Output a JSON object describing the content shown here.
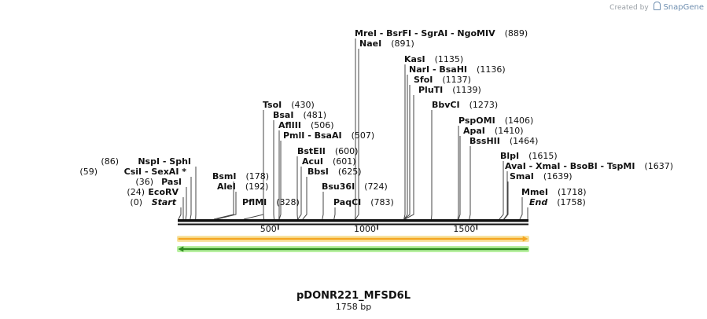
{
  "credit": {
    "prefix": "Created by",
    "brand_icon": "snapgene-logo-icon",
    "brand": "SnapGene"
  },
  "plasmid": {
    "name": "pDONR221_MFSD6L",
    "length_label": "1758 bp",
    "length": 1758
  },
  "axis": {
    "ticks": [
      500,
      1000,
      1500
    ],
    "tick_labels": [
      "500",
      "1000",
      "1500"
    ]
  },
  "features": [
    {
      "name": "feature-orange-arrow",
      "start": 0,
      "end": 1758,
      "direction": "forward",
      "color": "#f5a623",
      "halo": "#f7e3a1"
    },
    {
      "name": "feature-green-arrow",
      "start": 0,
      "end": 1758,
      "direction": "reverse",
      "color": "#2e8b1f",
      "halo": "#b7f0a0"
    }
  ],
  "sites": [
    {
      "text": "NspI  - SphI",
      "num": "(86)",
      "pos": 86,
      "numFirst": true
    },
    {
      "text": "CsiI  - SexAI *",
      "num": "(59)",
      "pos": 59,
      "numFirst": true
    },
    {
      "text": "PasI",
      "num": "(36)",
      "pos": 36,
      "numFirst": true
    },
    {
      "text": "EcoRV",
      "num": "(24)",
      "pos": 24,
      "numFirst": true
    },
    {
      "text": "Start",
      "num": "(0)",
      "pos": 0,
      "numFirst": true,
      "italic": true
    },
    {
      "text": "BsmI",
      "num": "(178)",
      "pos": 178
    },
    {
      "text": "AleI",
      "num": "(192)",
      "pos": 192
    },
    {
      "text": "PflMI",
      "num": "(328)",
      "pos": 328
    },
    {
      "text": "TsoI",
      "num": "(430)",
      "pos": 430
    },
    {
      "text": "BsaI",
      "num": "(481)",
      "pos": 481
    },
    {
      "text": "AflIII",
      "num": "(506)",
      "pos": 506
    },
    {
      "text": "PmlI  - BsaAI",
      "num": "(507)",
      "pos": 507
    },
    {
      "text": "BstEII",
      "num": "(600)",
      "pos": 600
    },
    {
      "text": "AcuI",
      "num": "(601)",
      "pos": 601
    },
    {
      "text": "BbsI",
      "num": "(625)",
      "pos": 625
    },
    {
      "text": "Bsu36I",
      "num": "(724)",
      "pos": 724
    },
    {
      "text": "PaqCI",
      "num": "(783)",
      "pos": 783
    },
    {
      "text": "MreI  - BsrFI  - SgrAI  - NgoMIV",
      "num": "(889)",
      "pos": 889
    },
    {
      "text": "NaeI",
      "num": "(891)",
      "pos": 891
    },
    {
      "text": "KasI",
      "num": "(1135)",
      "pos": 1135
    },
    {
      "text": "NarI  - BsaHI",
      "num": "(1136)",
      "pos": 1136
    },
    {
      "text": "SfoI",
      "num": "(1137)",
      "pos": 1137
    },
    {
      "text": "PluTI",
      "num": "(1139)",
      "pos": 1139
    },
    {
      "text": "BbvCI",
      "num": "(1273)",
      "pos": 1273
    },
    {
      "text": "PspOMI",
      "num": "(1406)",
      "pos": 1406
    },
    {
      "text": "ApaI",
      "num": "(1410)",
      "pos": 1410
    },
    {
      "text": "BssHII",
      "num": "(1464)",
      "pos": 1464
    },
    {
      "text": "BlpI",
      "num": "(1615)",
      "pos": 1615
    },
    {
      "text": "AvaI  - XmaI  - BsoBI  - TspMI",
      "num": "(1637)",
      "pos": 1637
    },
    {
      "text": "SmaI",
      "num": "(1639)",
      "pos": 1639
    },
    {
      "text": "MmeI",
      "num": "(1718)",
      "pos": 1718
    },
    {
      "text": "End",
      "num": "(1758)",
      "pos": 1758,
      "italic": true
    }
  ]
}
